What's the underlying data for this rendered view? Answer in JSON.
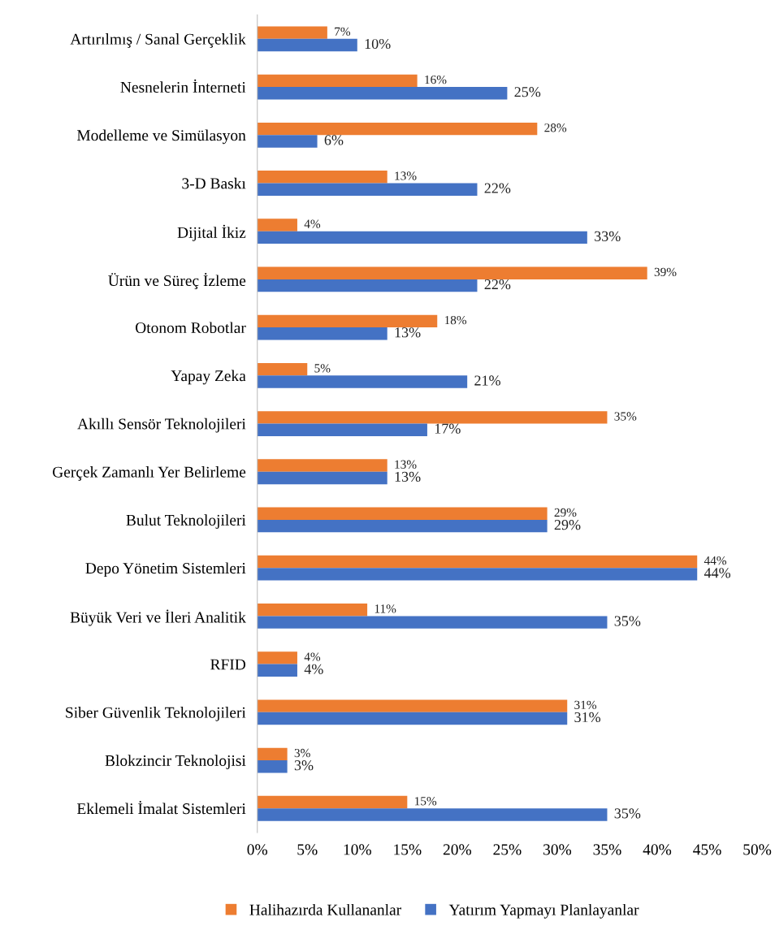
{
  "chart_data": {
    "type": "bar",
    "orientation": "horizontal",
    "categories": [
      "Artırılmış / Sanal Gerçeklik",
      "Nesnelerin İnterneti",
      "Modelleme ve Simülasyon",
      "3-D Baskı",
      "Dijital İkiz",
      "Ürün ve Süreç İzleme",
      "Otonom Robotlar",
      "Yapay Zeka",
      "Akıllı Sensör Teknolojileri",
      "Gerçek Zamanlı Yer Belirleme",
      "Bulut Teknolojileri",
      "Depo Yönetim Sistemleri",
      "Büyük Veri ve İleri Analitik",
      "RFID",
      "Siber Güvenlik Teknolojileri",
      "Blokzincir Teknolojisi",
      "Eklemeli İmalat Sistemleri"
    ],
    "series": [
      {
        "name": "Halihazırda Kullananlar",
        "color": "#ed7d31",
        "values": [
          7,
          16,
          28,
          13,
          4,
          39,
          18,
          5,
          35,
          13,
          29,
          44,
          11,
          4,
          31,
          3,
          15
        ],
        "value_labels": [
          "7%",
          "16%",
          "28%",
          "13%",
          "4%",
          "39%",
          "18%",
          "5%",
          "35%",
          "13%",
          "29%",
          "44%",
          "11%",
          "4%",
          "31%",
          "3%",
          "15%"
        ]
      },
      {
        "name": "Yatırım Yapmayı Planlayanlar",
        "color": "#4472c4",
        "values": [
          10,
          25,
          6,
          22,
          33,
          22,
          13,
          21,
          17,
          13,
          29,
          44,
          35,
          4,
          31,
          3,
          35
        ],
        "value_labels": [
          "10%",
          "25%",
          "6%",
          "22%",
          "33%",
          "22%",
          "13%",
          "21%",
          "17%",
          "13%",
          "29%",
          "44%",
          "35%",
          "4%",
          "31%",
          "3%",
          "35%"
        ]
      }
    ],
    "xlim": [
      0,
      50
    ],
    "xticks": [
      {
        "value": 0,
        "label": "0%"
      },
      {
        "value": 5,
        "label": "5%"
      },
      {
        "value": 10,
        "label": "10%"
      },
      {
        "value": 15,
        "label": "15%"
      },
      {
        "value": 20,
        "label": "20%"
      },
      {
        "value": 25,
        "label": "25%"
      },
      {
        "value": 30,
        "label": "30%"
      },
      {
        "value": 35,
        "label": "35%"
      },
      {
        "value": 40,
        "label": "40%"
      },
      {
        "value": 45,
        "label": "45%"
      },
      {
        "value": 50,
        "label": "50%"
      }
    ],
    "legend": "bottom",
    "grid": false
  }
}
